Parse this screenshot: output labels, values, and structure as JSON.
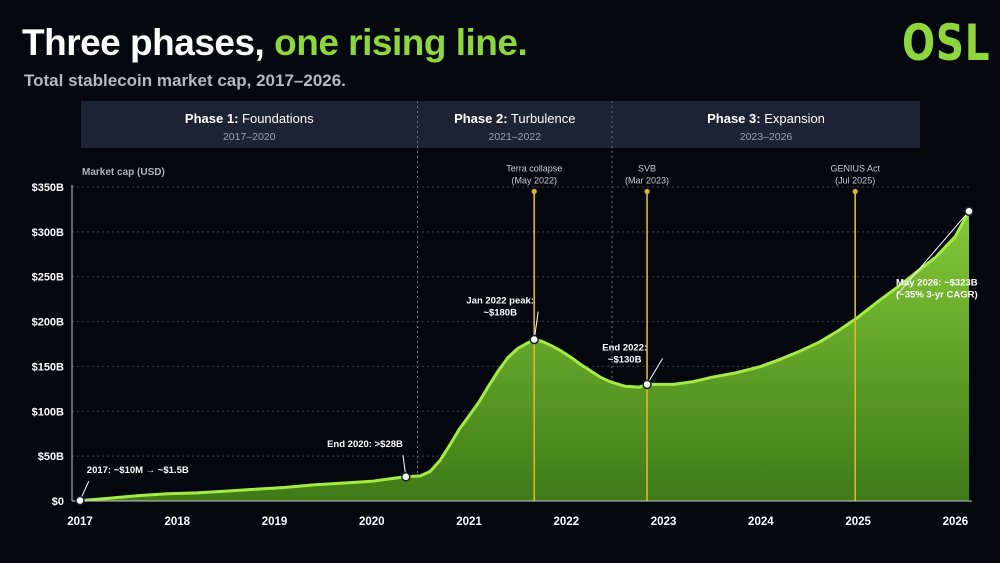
{
  "title": {
    "main": "Three phases,",
    "highlight": "one rising line."
  },
  "subtitle": "Total stablecoin market cap, 2017–2026.",
  "logo": "OSL",
  "colors": {
    "accent": "#8dd63c",
    "line": "#a4ec44",
    "event": "#e6b422",
    "background": "#05070f"
  },
  "chart_data": {
    "type": "area",
    "ylabel": "Market cap (USD)",
    "xlim": [
      2017,
      2026.2
    ],
    "ylim": [
      0,
      350
    ],
    "y_ticks": [
      {
        "value": 0,
        "label": "$0"
      },
      {
        "value": 50,
        "label": "$50B"
      },
      {
        "value": 100,
        "label": "$100B"
      },
      {
        "value": 150,
        "label": "$150B"
      },
      {
        "value": 200,
        "label": "$200B"
      },
      {
        "value": 250,
        "label": "$250B"
      },
      {
        "value": 300,
        "label": "$300B"
      },
      {
        "value": 350,
        "label": "$350B"
      }
    ],
    "x_ticks": [
      2017,
      2018,
      2019,
      2020,
      2021,
      2022,
      2023,
      2024,
      2025,
      2026
    ],
    "grid": "horizontal-dashed",
    "phases": [
      {
        "name_bold": "Phase 1:",
        "name_rest": "Foundations",
        "years": "2017–2020",
        "start": 2017,
        "end": 2020.47
      },
      {
        "name_bold": "Phase 2:",
        "name_rest": "Turbulence",
        "years": "2021–2022",
        "start": 2020.47,
        "end": 2022.47
      },
      {
        "name_bold": "Phase 3:",
        "name_rest": "Expansion",
        "years": "2023–2026",
        "start": 2022.47,
        "end": 2026.2
      }
    ],
    "series": [
      {
        "x": [
          2017,
          2017.3,
          2017.6,
          2017.9,
          2018.2,
          2018.5,
          2018.8,
          2019.1,
          2019.4,
          2019.7,
          2020.0,
          2020.2,
          2020.35,
          2020.5,
          2020.6,
          2020.7,
          2020.8,
          2020.9,
          2021.0,
          2021.1,
          2021.2,
          2021.3,
          2021.4,
          2021.5,
          2021.6,
          2021.67,
          2021.75,
          2021.85,
          2021.95,
          2022.05,
          2022.15,
          2022.25,
          2022.35,
          2022.45,
          2022.6,
          2022.75,
          2022.83,
          2022.95,
          2023.1,
          2023.3,
          2023.5,
          2023.75,
          2024.0,
          2024.2,
          2024.4,
          2024.6,
          2024.8,
          2025.0,
          2025.2,
          2025.4,
          2025.6,
          2025.8,
          2026.0,
          2026.14
        ],
        "y": [
          0.5,
          3,
          6,
          8,
          9,
          11,
          13,
          15,
          18,
          20,
          22,
          25,
          27,
          28,
          33,
          45,
          62,
          80,
          95,
          110,
          128,
          145,
          160,
          170,
          176,
          180,
          178,
          173,
          167,
          160,
          152,
          145,
          138,
          133,
          128,
          127,
          130,
          130,
          130,
          133,
          138,
          143,
          150,
          158,
          167,
          177,
          190,
          205,
          222,
          238,
          255,
          272,
          295,
          323
        ]
      }
    ],
    "events": [
      {
        "name": "Terra collapse",
        "date": "(May 2022)",
        "x": 2021.67,
        "y_top": 345
      },
      {
        "name": "SVB",
        "date": "(Mar 2023)",
        "x": 2022.83,
        "y_top": 345
      },
      {
        "name": "GENIUS Act",
        "date": "(Jul 2025)",
        "x": 2024.97,
        "y_top": 345
      }
    ],
    "points": [
      {
        "x": 2017,
        "y": 0.5,
        "label": [
          "2017: ~$10M → ~$1.5B"
        ],
        "anchor": "start",
        "label_x": 2017.07,
        "label_y": 31
      },
      {
        "x": 2020.35,
        "y": 27,
        "label": [
          "End 2020: >$28B"
        ],
        "anchor": "middle",
        "label_x": 2019.93,
        "label_y": 60
      },
      {
        "x": 2021.67,
        "y": 180,
        "label": [
          "Jan 2022 peak:",
          "~$180B"
        ],
        "anchor": "middle",
        "label_x": 2021.32,
        "label_y": 220
      },
      {
        "x": 2022.83,
        "y": 130,
        "label": [
          "End 2022:",
          "~$130B"
        ],
        "anchor": "middle",
        "label_x": 2022.6,
        "label_y": 168
      },
      {
        "x": 2026.14,
        "y": 323,
        "label": [
          "May 2026: ~$323B",
          "(~35% 3-yr CAGR)"
        ],
        "anchor": "start",
        "label_x": 2025.39,
        "label_y": 240
      }
    ]
  }
}
